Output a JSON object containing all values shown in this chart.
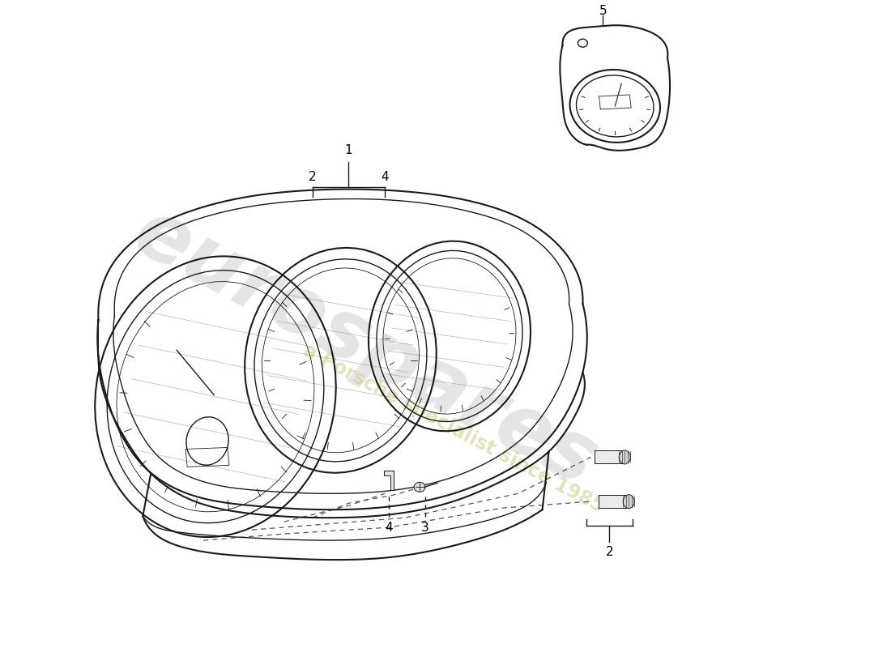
{
  "bg_color": "#ffffff",
  "line_color": "#1a1a1a",
  "watermark_text1": "eurospares",
  "watermark_text2": "a Porsche specialist since 1985",
  "fig_width": 11.0,
  "fig_height": 8.0
}
